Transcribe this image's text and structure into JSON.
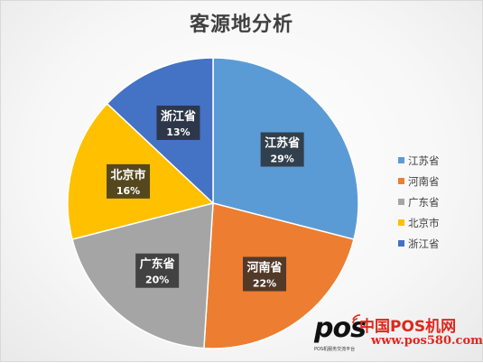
{
  "chart_data": {
    "type": "pie",
    "title": "客源地分析",
    "categories": [
      "江苏省",
      "河南省",
      "广东省",
      "北京市",
      "浙江省"
    ],
    "values": [
      29,
      22,
      20,
      16,
      13
    ],
    "value_labels": [
      "29%",
      "22%",
      "20%",
      "16%",
      "13%"
    ],
    "colors": [
      "#5B9BD5",
      "#ED7D31",
      "#A5A5A5",
      "#FFC000",
      "#4472C4"
    ],
    "legend_position": "right",
    "start_angle": "12 o'clock, clockwise"
  },
  "watermark": {
    "logo": "pos",
    "logo_sub": "POS机服务交流平台",
    "site_name": "中国POS机网",
    "url": "www.pos580.com"
  }
}
